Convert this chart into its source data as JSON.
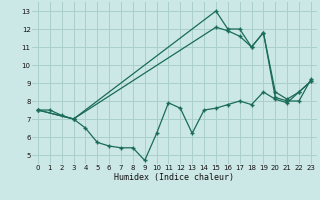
{
  "xlabel": "Humidex (Indice chaleur)",
  "bg_color": "#cce8e6",
  "grid_color": "#aacfcd",
  "line_color": "#1a6b5a",
  "xlim": [
    -0.5,
    23.5
  ],
  "ylim": [
    4.5,
    13.5
  ],
  "xticks": [
    0,
    1,
    2,
    3,
    4,
    5,
    6,
    7,
    8,
    9,
    10,
    11,
    12,
    13,
    14,
    15,
    16,
    17,
    18,
    19,
    20,
    21,
    22,
    23
  ],
  "yticks": [
    5,
    6,
    7,
    8,
    9,
    10,
    11,
    12,
    13
  ],
  "line1_x": [
    0,
    1,
    2,
    3,
    4,
    5,
    6,
    7,
    8,
    9,
    10,
    11,
    12,
    13,
    14,
    15,
    16,
    17,
    18,
    19,
    20,
    21,
    22,
    23
  ],
  "line1_y": [
    7.5,
    7.5,
    7.2,
    7.0,
    6.5,
    5.7,
    5.5,
    5.4,
    5.4,
    4.7,
    6.2,
    7.9,
    7.6,
    6.2,
    7.5,
    7.6,
    7.8,
    8.0,
    7.8,
    8.5,
    8.1,
    7.9,
    8.5,
    9.1
  ],
  "line2_x": [
    0,
    3,
    15,
    16,
    17,
    18,
    19,
    20,
    21,
    22,
    23
  ],
  "line2_y": [
    7.5,
    7.0,
    13.0,
    12.0,
    12.0,
    11.0,
    11.8,
    8.2,
    8.0,
    8.0,
    9.2
  ],
  "line3_x": [
    0,
    3,
    15,
    16,
    17,
    18,
    19,
    20,
    21,
    22,
    23
  ],
  "line3_y": [
    7.5,
    7.0,
    12.1,
    11.9,
    11.6,
    11.0,
    11.8,
    8.5,
    8.1,
    8.5,
    9.1
  ]
}
